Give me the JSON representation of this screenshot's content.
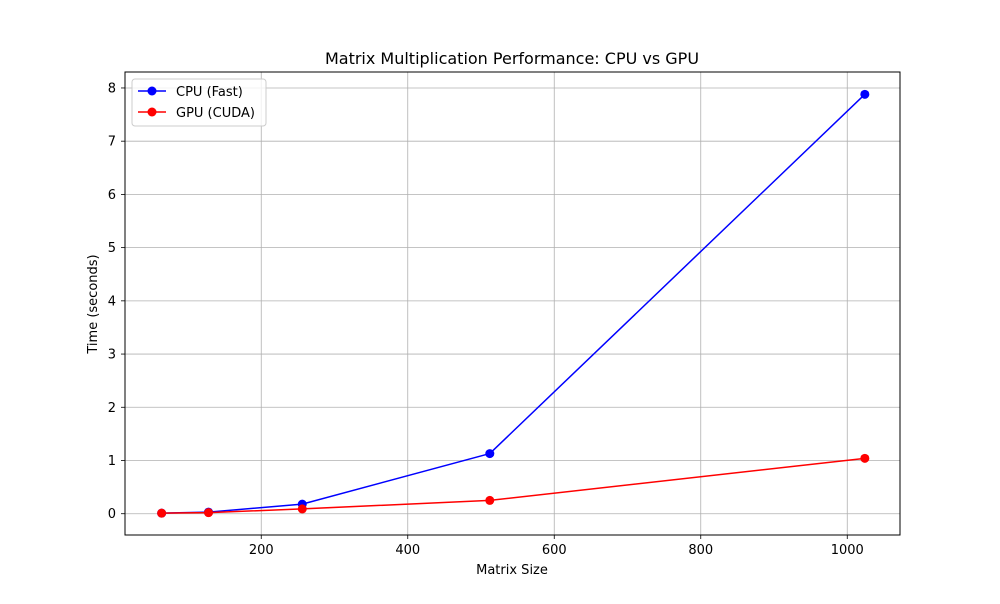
{
  "chart_data": {
    "type": "line",
    "title": "Matrix Multiplication Performance: CPU vs GPU",
    "xlabel": "Matrix Size",
    "ylabel": "Time (seconds)",
    "xlim": [
      14,
      1072
    ],
    "ylim": [
      -0.4,
      8.3
    ],
    "xticks": [
      200,
      400,
      600,
      800,
      1000
    ],
    "yticks": [
      0,
      1,
      2,
      3,
      4,
      5,
      6,
      7,
      8
    ],
    "grid": true,
    "legend_position": "top-left",
    "x": [
      64,
      128,
      256,
      512,
      1024
    ],
    "series": [
      {
        "name": "CPU (Fast)",
        "color": "#0000ff",
        "marker": "circle",
        "values": [
          0.01,
          0.03,
          0.18,
          1.13,
          7.88
        ]
      },
      {
        "name": "GPU (CUDA)",
        "color": "#ff0000",
        "marker": "circle",
        "values": [
          0.01,
          0.02,
          0.09,
          0.25,
          1.04
        ]
      }
    ]
  }
}
